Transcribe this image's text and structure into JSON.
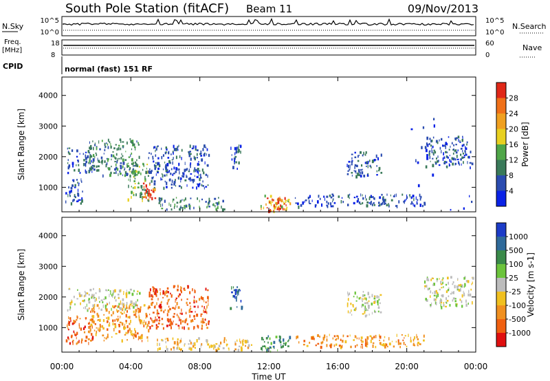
{
  "header": {
    "title": "South Pole Station (fitACF)",
    "beam": "Beam 11",
    "date": "09/Nov/2013"
  },
  "top_panels": {
    "nsky_label": "N.Sky",
    "nsearch_label": "N.Search",
    "nsky_ticks": [
      "10^5",
      "10^0"
    ],
    "nsearch_ticks": [
      "10^5",
      "10^0"
    ],
    "freq_label": "Freq.",
    "freq_unit": "[MHz]",
    "freq_ticks": [
      "18",
      "8"
    ],
    "nave_label": "Nave",
    "nave_ticks": [
      "60",
      "0"
    ],
    "cpid_label": "CPID",
    "cpid_text": "normal (fast) 151 RF"
  },
  "chart_data": [
    {
      "type": "heatmap",
      "name": "power",
      "ylabel": "Slant Range [km]",
      "yticks": [
        "1000",
        "2000",
        "3000",
        "4000"
      ],
      "ylim": [
        200,
        4600
      ],
      "xlim": [
        0,
        24
      ],
      "colorbar": {
        "label": "Power [dB]",
        "ticks": [
          "4",
          "8",
          "12",
          "16",
          "20",
          "24",
          "28"
        ],
        "colors": [
          "#0a22e6",
          "#2b4cb0",
          "#3a7a5a",
          "#4fa648",
          "#e8d020",
          "#f0a020",
          "#f07018",
          "#e02818"
        ]
      },
      "regions": [
        {
          "t0": 0.2,
          "t1": 1.2,
          "r0": 500,
          "r1": 1400,
          "level": 1
        },
        {
          "t0": 0.3,
          "t1": 1.8,
          "r0": 1500,
          "r1": 2300,
          "level": 1
        },
        {
          "t0": 1.5,
          "t1": 4.5,
          "r0": 1400,
          "r1": 2600,
          "level": 2
        },
        {
          "t0": 3.8,
          "t1": 5.0,
          "r0": 600,
          "r1": 1800,
          "level": 3
        },
        {
          "t0": 4.6,
          "t1": 5.4,
          "r0": 600,
          "r1": 1200,
          "level": 6
        },
        {
          "t0": 4.8,
          "t1": 5.2,
          "r0": 700,
          "r1": 1000,
          "level": 7
        },
        {
          "t0": 5.0,
          "t1": 8.5,
          "r0": 1000,
          "r1": 2400,
          "level": 1
        },
        {
          "t0": 5.5,
          "t1": 9.5,
          "r0": 300,
          "r1": 700,
          "level": 2
        },
        {
          "t0": 9.7,
          "t1": 10.4,
          "r0": 1600,
          "r1": 2400,
          "level": 1
        },
        {
          "t0": 11.5,
          "t1": 13.2,
          "r0": 250,
          "r1": 800,
          "level": 4
        },
        {
          "t0": 11.8,
          "t1": 13.0,
          "r0": 250,
          "r1": 700,
          "level": 7
        },
        {
          "t0": 13.5,
          "t1": 21.0,
          "r0": 400,
          "r1": 800,
          "level": 1
        },
        {
          "t0": 16.5,
          "t1": 18.5,
          "r0": 1400,
          "r1": 2200,
          "level": 1
        },
        {
          "t0": 21.0,
          "t1": 23.8,
          "r0": 1700,
          "r1": 2700,
          "level": 1
        },
        {
          "t0": 20.0,
          "t1": 23.8,
          "r0": 200,
          "r1": 3500,
          "level": 0
        }
      ]
    },
    {
      "type": "heatmap",
      "name": "velocity",
      "ylabel": "Slant Range [km]",
      "yticks": [
        "1000",
        "2000",
        "3000",
        "4000"
      ],
      "ylim": [
        200,
        4600
      ],
      "xlim": [
        0,
        24
      ],
      "xlabel": "Time UT",
      "xticks": [
        "00:00",
        "04:00",
        "08:00",
        "12:00",
        "16:00",
        "20:00",
        "00:00"
      ],
      "colorbar": {
        "label": "Velocity [m s-1]",
        "ticks": [
          "1000",
          "500",
          "100",
          "25",
          "-25",
          "-100",
          "-500",
          "-1000"
        ],
        "colors": [
          "#1c3cc8",
          "#2f6a9a",
          "#3a8a4a",
          "#6cc43c",
          "#bcbcbc",
          "#f0c020",
          "#f09020",
          "#f06010",
          "#e01010"
        ]
      },
      "regions": [
        {
          "t0": 0.2,
          "t1": 1.8,
          "r0": 500,
          "r1": 1400,
          "level": 7
        },
        {
          "t0": 0.3,
          "t1": 4.5,
          "r0": 1600,
          "r1": 2300,
          "level": 4
        },
        {
          "t0": 1.5,
          "t1": 5.0,
          "r0": 600,
          "r1": 1800,
          "level": 6
        },
        {
          "t0": 5.0,
          "t1": 8.5,
          "r0": 1000,
          "r1": 2400,
          "level": 7
        },
        {
          "t0": 5.5,
          "t1": 11.0,
          "r0": 300,
          "r1": 700,
          "level": 5
        },
        {
          "t0": 9.7,
          "t1": 10.4,
          "r0": 1600,
          "r1": 2400,
          "level": 1
        },
        {
          "t0": 11.5,
          "t1": 13.2,
          "r0": 250,
          "r1": 800,
          "level": 2
        },
        {
          "t0": 13.5,
          "t1": 21.0,
          "r0": 400,
          "r1": 800,
          "level": 6
        },
        {
          "t0": 16.5,
          "t1": 18.5,
          "r0": 1400,
          "r1": 2200,
          "level": 4
        },
        {
          "t0": 21.0,
          "t1": 23.8,
          "r0": 1700,
          "r1": 2700,
          "level": 4
        }
      ]
    }
  ]
}
